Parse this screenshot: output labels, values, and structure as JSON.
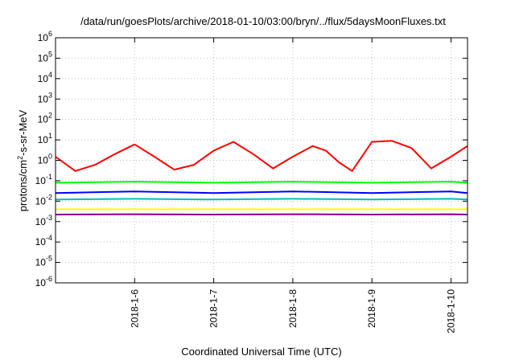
{
  "chart_data": {
    "type": "line",
    "title": "/data/run/goesPlots/archive/2018-01-10/03:00/bryn/../flux/5daysMoonFluxes.txt",
    "xlabel": "Coordinated Universal Time (UTC)",
    "ylabel_parts": [
      "protons/cm",
      "2",
      "-s-sr-MeV"
    ],
    "x_range": [
      "2018-01-05 00:00",
      "2018-01-10 05:00"
    ],
    "x_ticks": [
      {
        "date": "2018-01-06",
        "label": "2018-1-6"
      },
      {
        "date": "2018-01-07",
        "label": "2018-1-7"
      },
      {
        "date": "2018-01-08",
        "label": "2018-1-8"
      },
      {
        "date": "2018-01-09",
        "label": "2018-1-9"
      },
      {
        "date": "2018-01-10",
        "label": "2018-1-10"
      }
    ],
    "y_scale": "log",
    "y_range": [
      1e-06,
      1000000.0
    ],
    "y_ticks": [
      {
        "value": 1000000.0,
        "base": "10",
        "exp": "6"
      },
      {
        "value": 100000.0,
        "base": "10",
        "exp": "5"
      },
      {
        "value": 10000.0,
        "base": "10",
        "exp": "4"
      },
      {
        "value": 1000.0,
        "base": "10",
        "exp": "3"
      },
      {
        "value": 100.0,
        "base": "10",
        "exp": "2"
      },
      {
        "value": 10.0,
        "base": "10",
        "exp": "1"
      },
      {
        "value": 1.0,
        "base": "10",
        "exp": "0"
      },
      {
        "value": 0.1,
        "base": "10",
        "exp": "-1"
      },
      {
        "value": 0.01,
        "base": "10",
        "exp": "-2"
      },
      {
        "value": 0.001,
        "base": "10",
        "exp": "-3"
      },
      {
        "value": 0.0001,
        "base": "10",
        "exp": "-4"
      },
      {
        "value": 1e-05,
        "base": "10",
        "exp": "-5"
      },
      {
        "value": 1e-06,
        "base": "10",
        "exp": "-6"
      }
    ],
    "grid": true,
    "legend": "none",
    "series": [
      {
        "color": "#ff0000",
        "x": [
          "2018-01-05 00:00",
          "2018-01-05 06:00",
          "2018-01-05 12:00",
          "2018-01-05 18:00",
          "2018-01-06 00:00",
          "2018-01-06 06:00",
          "2018-01-06 12:00",
          "2018-01-06 18:00",
          "2018-01-07 00:00",
          "2018-01-07 06:00",
          "2018-01-07 12:00",
          "2018-01-07 18:00",
          "2018-01-08 00:00",
          "2018-01-08 06:00",
          "2018-01-08 10:00",
          "2018-01-08 14:00",
          "2018-01-08 18:00",
          "2018-01-09 00:00",
          "2018-01-09 06:00",
          "2018-01-09 12:00",
          "2018-01-09 18:00",
          "2018-01-10 00:00",
          "2018-01-10 05:00"
        ],
        "y": [
          1.5,
          0.3,
          0.6,
          2.0,
          6.0,
          1.5,
          0.35,
          0.6,
          3.0,
          8.0,
          2.0,
          0.4,
          1.5,
          5.0,
          3.0,
          0.8,
          0.3,
          8.0,
          9.0,
          4.0,
          0.4,
          1.5,
          5.0
        ]
      },
      {
        "color": "#00ff00",
        "x": [
          "2018-01-05 00:00",
          "2018-01-06 00:00",
          "2018-01-07 00:00",
          "2018-01-08 00:00",
          "2018-01-09 00:00",
          "2018-01-10 00:00",
          "2018-01-10 05:00"
        ],
        "y": [
          0.08,
          0.09,
          0.08,
          0.09,
          0.08,
          0.09,
          0.08
        ]
      },
      {
        "color": "#0000ff",
        "x": [
          "2018-01-05 00:00",
          "2018-01-06 00:00",
          "2018-01-07 00:00",
          "2018-01-08 00:00",
          "2018-01-09 00:00",
          "2018-01-10 00:00",
          "2018-01-10 05:00"
        ],
        "y": [
          0.025,
          0.03,
          0.025,
          0.03,
          0.025,
          0.03,
          0.025
        ]
      },
      {
        "color": "#00bfbf",
        "x": [
          "2018-01-05 00:00",
          "2018-01-06 00:00",
          "2018-01-07 00:00",
          "2018-01-08 00:00",
          "2018-01-09 00:00",
          "2018-01-10 00:00",
          "2018-01-10 05:00"
        ],
        "y": [
          0.012,
          0.013,
          0.012,
          0.013,
          0.012,
          0.013,
          0.012
        ]
      },
      {
        "color": "#ffff00",
        "x": [
          "2018-01-05 00:00",
          "2018-01-10 05:00"
        ],
        "y": [
          0.004,
          0.004
        ]
      },
      {
        "color": "#800080",
        "x": [
          "2018-01-05 00:00",
          "2018-01-06 00:00",
          "2018-01-07 00:00",
          "2018-01-08 00:00",
          "2018-01-09 00:00",
          "2018-01-10 00:00",
          "2018-01-10 05:00"
        ],
        "y": [
          0.0022,
          0.0023,
          0.0022,
          0.0023,
          0.0022,
          0.0023,
          0.0022
        ]
      }
    ]
  }
}
